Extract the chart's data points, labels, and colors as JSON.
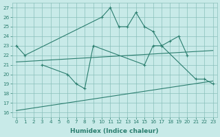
{
  "line1_x": [
    0,
    1,
    10,
    11,
    12,
    13,
    14,
    15,
    16,
    17,
    18,
    19,
    20
  ],
  "line1_y": [
    23,
    22,
    26,
    27,
    25,
    25,
    26.5,
    25,
    24.5,
    23,
    23.5,
    24,
    22
  ],
  "line2_x": [
    3,
    6,
    7,
    8,
    9,
    15,
    16,
    17,
    21,
    22,
    23
  ],
  "line2_y": [
    21,
    20,
    19,
    18.5,
    23,
    21,
    23,
    23,
    19.5,
    19.5,
    19
  ],
  "trend1_x": [
    0,
    23
  ],
  "trend1_y": [
    21.3,
    22.5
  ],
  "trend2_x": [
    0,
    23
  ],
  "trend2_y": [
    16.2,
    19.3
  ],
  "line_color": "#2a7d6e",
  "background_color": "#c8eae8",
  "grid_color": "#8abfbb",
  "xlabel": "Humidex (Indice chaleur)",
  "ylabel_values": [
    16,
    17,
    18,
    19,
    20,
    21,
    22,
    23,
    24,
    25,
    26,
    27
  ],
  "xlim": [
    -0.5,
    23.5
  ],
  "ylim": [
    15.5,
    27.5
  ],
  "xtick_labels": [
    "0",
    "1",
    "2",
    "3",
    "4",
    "5",
    "6",
    "7",
    "8",
    "9",
    "10",
    "11",
    "12",
    "13",
    "14",
    "15",
    "16",
    "17",
    "18",
    "19",
    "20",
    "21",
    "22",
    "23"
  ]
}
